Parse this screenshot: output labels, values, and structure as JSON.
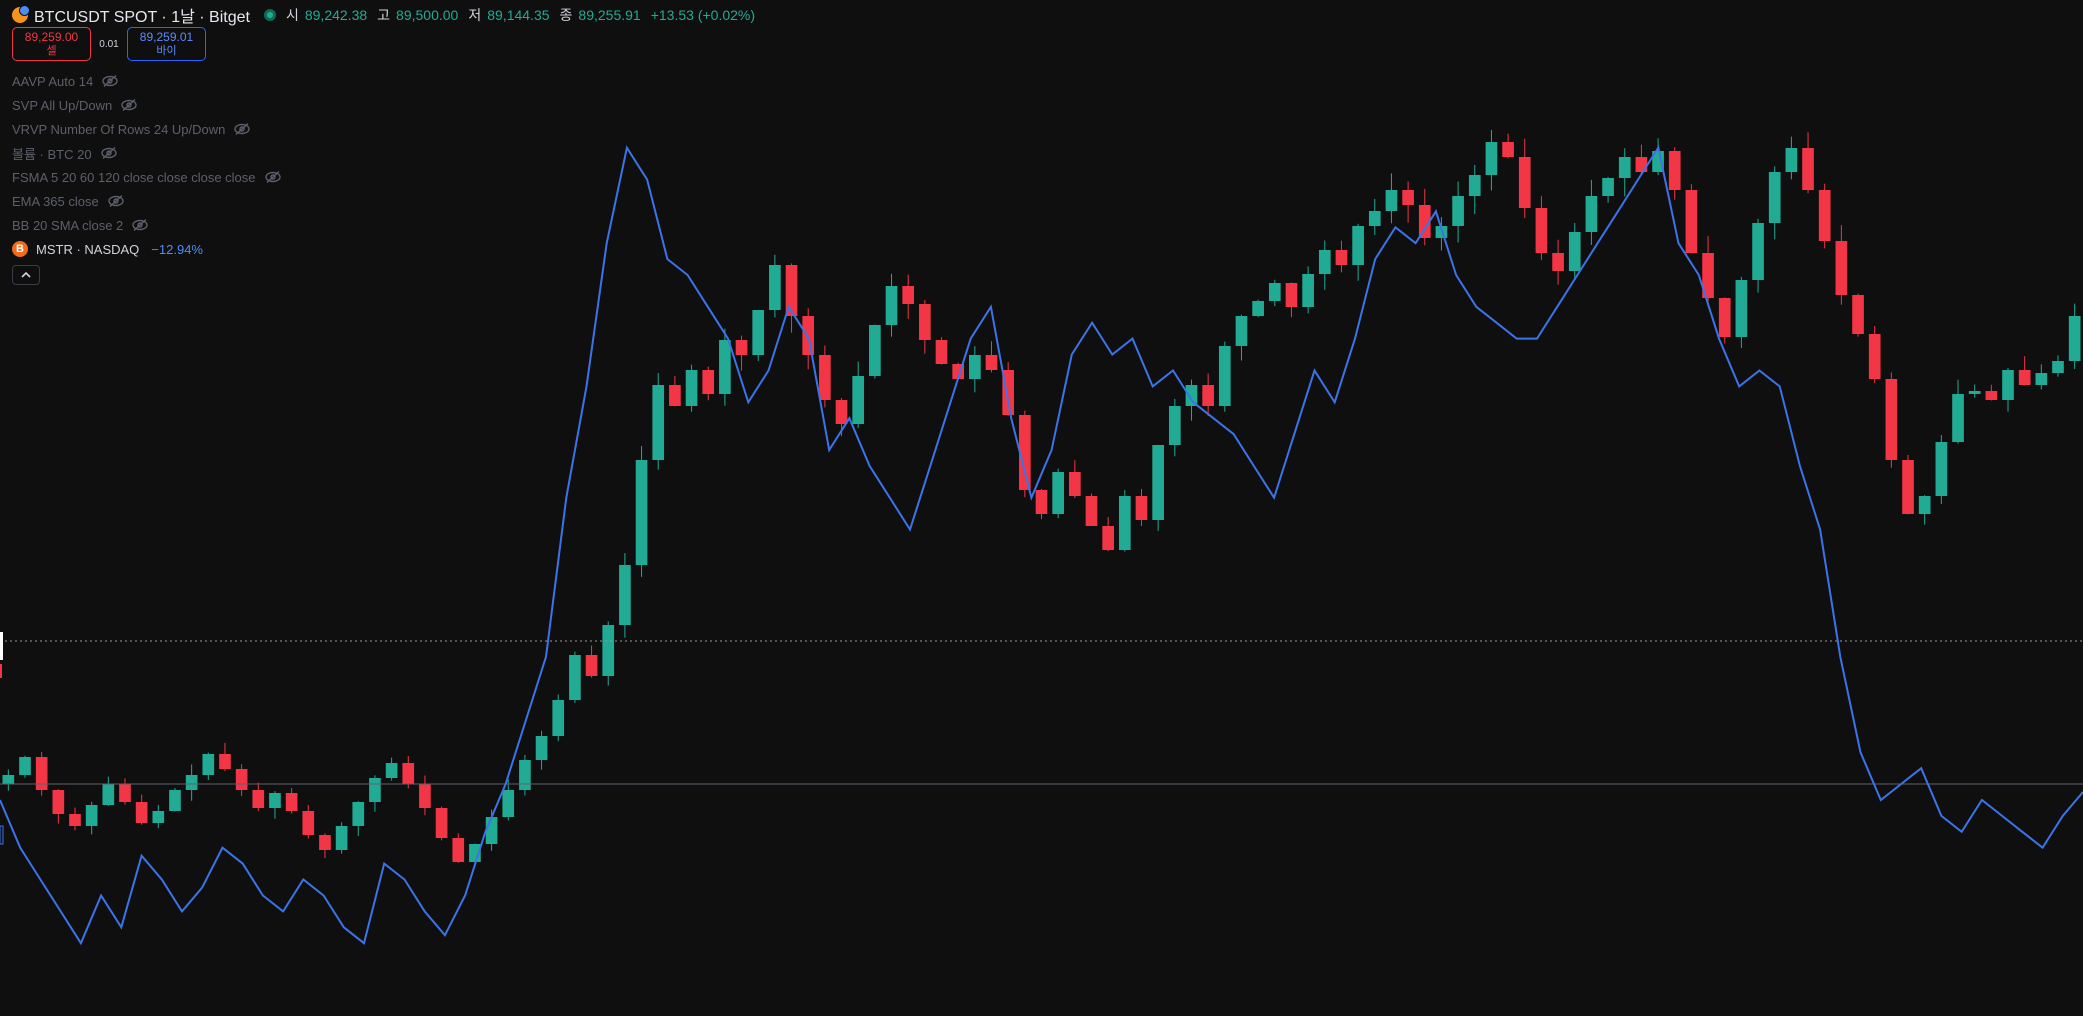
{
  "header": {
    "symbol_title": "BTCUSDT SPOT · 1날 · Bitget",
    "ohlc": [
      {
        "label": "시",
        "value": "89,242.38"
      },
      {
        "label": "고",
        "value": "89,500.00"
      },
      {
        "label": "저",
        "value": "89,144.35"
      },
      {
        "label": "종",
        "value": "89,255.91"
      }
    ],
    "change": "+13.53 (+0.02%)"
  },
  "trade": {
    "sell_price": "89,259.00",
    "sell_label": "셀",
    "spread": "0.01",
    "buy_price": "89,259.01",
    "buy_label": "바이"
  },
  "indicators": [
    {
      "label": "AAVP Auto 14",
      "icon": "eye-hidden-icon"
    },
    {
      "label": "SVP All Up/Down",
      "icon": "eye-hidden-icon"
    },
    {
      "label": "VRVP Number Of Rows 24 Up/Down",
      "icon": "eye-hidden-icon"
    },
    {
      "label": "볼륨 · BTC 20",
      "icon": "eye-hidden-icon"
    },
    {
      "label": "FSMA 5 20 60 120 close close close close",
      "icon": "eye-hidden-icon"
    },
    {
      "label": "EMA 365 close",
      "icon": "eye-hidden-icon"
    },
    {
      "label": "BB 20 SMA close 2",
      "icon": "eye-hidden-icon"
    }
  ],
  "compare": {
    "logo_letter": "B",
    "label": "MSTR · NASDAQ",
    "change": "−12.94%"
  },
  "collapse_icon": "chevron-up-icon",
  "colors": {
    "background": "#0f0f10",
    "up": "#22ab94",
    "down": "#f23645",
    "compare_line": "#3a74e8",
    "ohlc_value": "#22ab94"
  },
  "chart_data": {
    "type": "line",
    "series": [
      {
        "name": "BTCUSDT SPOT",
        "style": "candlestick",
        "close": [
          31500,
          32100,
          31000,
          30200,
          29800,
          30500,
          31200,
          30600,
          29900,
          30300,
          31000,
          31500,
          32200,
          31700,
          31000,
          30400,
          30900,
          30300,
          29500,
          29000,
          29800,
          30600,
          31400,
          31900,
          31200,
          30400,
          29400,
          28600,
          29200,
          30100,
          31000,
          32000,
          32800,
          34000,
          35500,
          34800,
          36500,
          38500,
          42000,
          44500,
          43800,
          45000,
          44200,
          46000,
          45500,
          47000,
          48500,
          46800,
          45500,
          44000,
          43200,
          44800,
          46500,
          47800,
          47200,
          46000,
          45200,
          44700,
          45500,
          45000,
          43500,
          41000,
          40200,
          41600,
          40800,
          39800,
          39000,
          40800,
          40000,
          42500,
          43800,
          44500,
          43800,
          45800,
          46800,
          47300,
          47900,
          47100,
          48200,
          49000,
          48500,
          49800,
          50300,
          51000,
          50500,
          49400,
          49800,
          50800,
          51500,
          52600,
          52100,
          50400,
          48900,
          48300,
          49600,
          50800,
          51400,
          52100,
          51600,
          52300,
          51000,
          48900,
          47400,
          46100,
          48000,
          49900,
          51600,
          52400,
          51000,
          49300,
          47500,
          46200,
          44700,
          42000,
          40200,
          40800,
          42600,
          44200,
          44300,
          44000,
          45000,
          44500,
          44900,
          45300,
          46800
        ],
        "y_range_min": 28000,
        "y_range_max": 54000
      },
      {
        "name": "MSTR · NASDAQ",
        "style": "line",
        "values": [
          210,
          180,
          160,
          140,
          120,
          150,
          130,
          175,
          160,
          140,
          155,
          180,
          170,
          150,
          140,
          160,
          150,
          130,
          120,
          170,
          160,
          140,
          125,
          150,
          190,
          220,
          260,
          300,
          400,
          470,
          560,
          620,
          600,
          550,
          540,
          520,
          500,
          460,
          480,
          520,
          500,
          430,
          450,
          420,
          400,
          380,
          420,
          460,
          500,
          520,
          450,
          400,
          430,
          490,
          510,
          490,
          500,
          470,
          480,
          460,
          450,
          440,
          420,
          400,
          440,
          480,
          460,
          500,
          550,
          570,
          560,
          580,
          540,
          520,
          510,
          500,
          500,
          520,
          540,
          560,
          580,
          600,
          620,
          560,
          540,
          500,
          470,
          480,
          470,
          420,
          380,
          300,
          240,
          210,
          220,
          230,
          200,
          190,
          210,
          200,
          190,
          180,
          200,
          215
        ],
        "y_range_min": 100,
        "y_range_max": 650
      }
    ],
    "horizontal_lines": [
      "dotted",
      "solid"
    ],
    "title": "",
    "xlabel": "",
    "ylabel": ""
  }
}
